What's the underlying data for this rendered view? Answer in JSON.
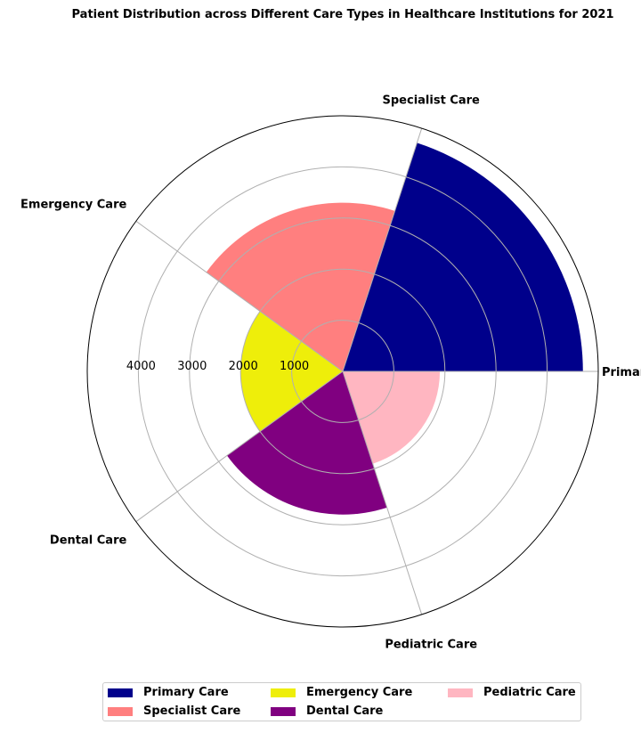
{
  "chart_data": {
    "type": "polar-bar",
    "title": "Patient Distribution across Different Care Types in Healthcare Institutions for 2021",
    "categories": [
      "Primary Care",
      "Specialist Care",
      "Emergency Care",
      "Dental Care",
      "Pediatric Care"
    ],
    "values": [
      4700,
      3300,
      2000,
      2800,
      1900
    ],
    "colors": [
      "#00008b",
      "#ff7f7f",
      "#eeee0a",
      "#800080",
      "#ffb6c1"
    ],
    "radial_ticks": [
      1000,
      2000,
      3000,
      4000
    ],
    "rlim": [
      0,
      5000
    ],
    "grid": true,
    "legend": {
      "placement": "bottom-center",
      "columns": 3,
      "entries": [
        "Primary Care",
        "Specialist Care",
        "Emergency Care",
        "Dental Care",
        "Pediatric Care"
      ]
    }
  }
}
